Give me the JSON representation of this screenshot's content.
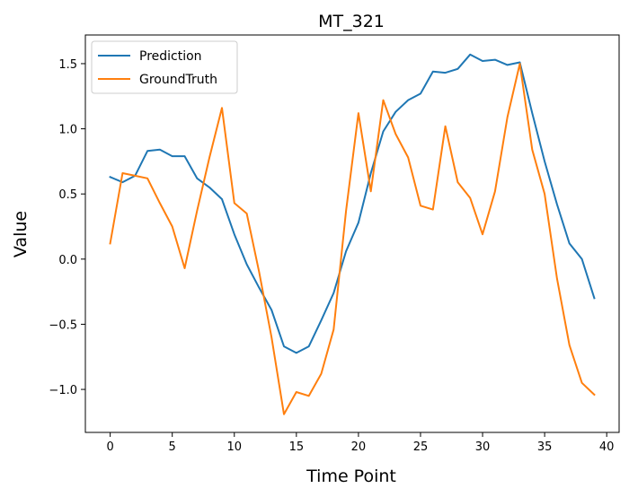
{
  "chart_data": {
    "type": "line",
    "title": "MT_321",
    "xlabel": "Time Point",
    "ylabel": "Value",
    "xlim": [
      -2,
      41
    ],
    "ylim": [
      -1.33,
      1.72
    ],
    "xticks": [
      0,
      5,
      10,
      15,
      20,
      25,
      30,
      35,
      40
    ],
    "yticks": [
      -1.0,
      -0.5,
      0.0,
      0.5,
      1.0,
      1.5
    ],
    "ytick_labels": [
      "−1.0",
      "−0.5",
      "0.0",
      "0.5",
      "1.0",
      "1.5"
    ],
    "grid": false,
    "legend_position": "upper-left",
    "series": [
      {
        "name": "Prediction",
        "color": "#1f77b4",
        "values": [
          0.63,
          0.59,
          0.64,
          0.83,
          0.84,
          0.79,
          0.79,
          0.62,
          0.55,
          0.46,
          0.19,
          -0.04,
          -0.22,
          -0.39,
          -0.67,
          -0.72,
          -0.67,
          -0.47,
          -0.26,
          0.06,
          0.28,
          0.66,
          0.98,
          1.13,
          1.22,
          1.27,
          1.44,
          1.43,
          1.46,
          1.57,
          1.52,
          1.53,
          1.49,
          1.51,
          1.12,
          0.75,
          0.42,
          0.12,
          0.0,
          -0.3
        ]
      },
      {
        "name": "GroundTruth",
        "color": "#ff7f0e",
        "values": [
          0.12,
          0.66,
          0.64,
          0.62,
          0.43,
          0.25,
          -0.07,
          0.37,
          0.78,
          1.16,
          0.43,
          0.35,
          -0.1,
          -0.6,
          -1.19,
          -1.02,
          -1.05,
          -0.88,
          -0.54,
          0.37,
          1.12,
          0.52,
          1.22,
          0.96,
          0.78,
          0.41,
          0.38,
          1.02,
          0.59,
          0.47,
          0.19,
          0.52,
          1.09,
          1.5,
          0.84,
          0.5,
          -0.15,
          -0.66,
          -0.95,
          -1.04
        ]
      }
    ]
  }
}
